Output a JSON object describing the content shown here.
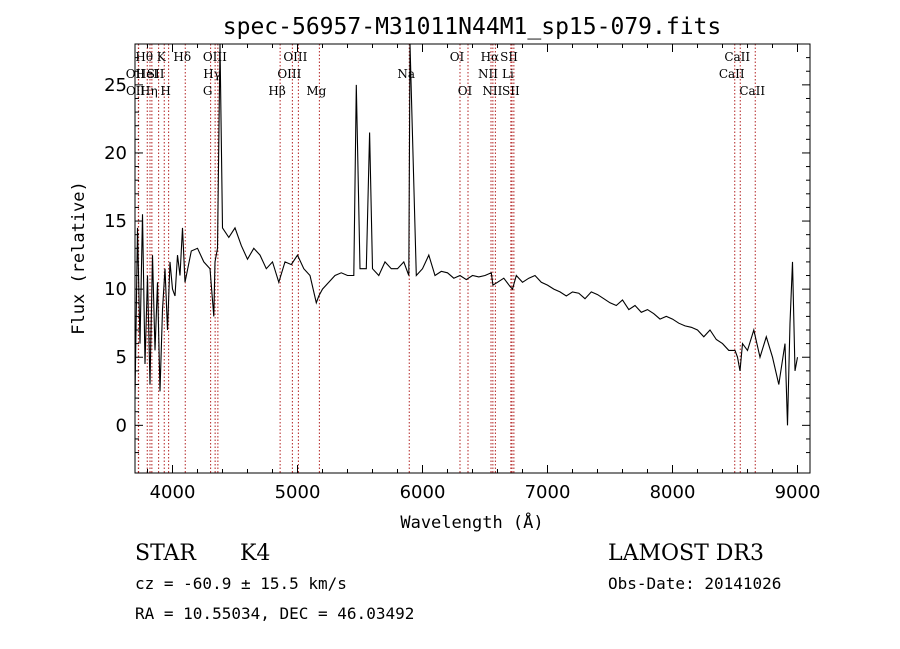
{
  "chart_data": {
    "type": "line",
    "title": "spec-56957-M31011N44M1_sp15-079.fits",
    "xlabel": "Wavelength (Å)",
    "ylabel": "Flux (relative)",
    "xlim": [
      3700,
      9100
    ],
    "ylim": [
      -3.5,
      28
    ],
    "xticks": [
      4000,
      5000,
      6000,
      7000,
      8000,
      9000
    ],
    "yticks": [
      0,
      5,
      10,
      15,
      20,
      25
    ],
    "line_color": "#000000",
    "marker_color": "#b22222",
    "series": [
      {
        "x": [
          3700,
          3720,
          3740,
          3760,
          3780,
          3800,
          3820,
          3840,
          3860,
          3880,
          3900,
          3920,
          3940,
          3960,
          3980,
          4000,
          4020,
          4040,
          4060,
          4080,
          4100,
          4150,
          4200,
          4250,
          4300,
          4330,
          4340,
          4360,
          4380,
          4400,
          4450,
          4500,
          4550,
          4600,
          4650,
          4700,
          4750,
          4800,
          4850,
          4900,
          4950,
          5000,
          5050,
          5100,
          5150,
          5170,
          5200,
          5250,
          5300,
          5350,
          5400,
          5450,
          5470,
          5500,
          5550,
          5577,
          5600,
          5650,
          5700,
          5750,
          5800,
          5850,
          5890,
          5900,
          5950,
          6000,
          6050,
          6100,
          6150,
          6200,
          6250,
          6300,
          6350,
          6400,
          6450,
          6500,
          6550,
          6563,
          6600,
          6650,
          6700,
          6720,
          6750,
          6800,
          6850,
          6900,
          6950,
          7000,
          7050,
          7100,
          7150,
          7200,
          7250,
          7300,
          7350,
          7400,
          7450,
          7500,
          7550,
          7600,
          7650,
          7700,
          7750,
          7800,
          7850,
          7900,
          7950,
          8000,
          8050,
          8100,
          8150,
          8200,
          8250,
          8300,
          8350,
          8400,
          8450,
          8500,
          8520,
          8540,
          8560,
          8600,
          8650,
          8700,
          8750,
          8800,
          8850,
          8900,
          8920,
          8940,
          8960,
          8980,
          9000
        ],
        "y": [
          2.0,
          14.5,
          6.0,
          15.5,
          4.5,
          11.0,
          3.0,
          12.5,
          5.5,
          10.5,
          2.5,
          8.5,
          11.5,
          7.0,
          12.0,
          10.0,
          9.5,
          12.5,
          11.0,
          14.5,
          10.5,
          12.8,
          13.0,
          12.0,
          11.5,
          8.0,
          12.0,
          13.0,
          28.0,
          14.5,
          13.8,
          14.5,
          13.2,
          12.2,
          13.0,
          12.5,
          11.5,
          12.0,
          10.5,
          12.0,
          11.8,
          12.5,
          11.5,
          11.0,
          9.0,
          9.5,
          10.0,
          10.5,
          11.0,
          11.2,
          11.0,
          11.0,
          25.0,
          11.5,
          11.5,
          21.5,
          11.5,
          11.0,
          12.0,
          11.5,
          11.5,
          12.0,
          11.0,
          28.0,
          11.0,
          11.5,
          12.5,
          11.0,
          11.3,
          11.2,
          10.8,
          11.0,
          10.7,
          11.0,
          10.9,
          11.0,
          11.2,
          10.3,
          10.5,
          10.8,
          10.2,
          10.0,
          11.0,
          10.5,
          10.8,
          11.0,
          10.5,
          10.3,
          10.0,
          9.8,
          9.5,
          9.8,
          9.7,
          9.3,
          9.8,
          9.6,
          9.3,
          9.0,
          8.8,
          9.2,
          8.5,
          8.8,
          8.3,
          8.5,
          8.2,
          7.8,
          8.0,
          7.8,
          7.5,
          7.3,
          7.2,
          7.0,
          6.5,
          7.0,
          6.3,
          6.0,
          5.5,
          5.5,
          5.0,
          4.0,
          6.0,
          5.5,
          7.0,
          5.0,
          6.5,
          5.0,
          3.0,
          6.0,
          0.0,
          7.5,
          12.0,
          4.0,
          5.0
        ]
      }
    ],
    "line_markers": [
      {
        "lines": [
          {
            "label": "OII",
            "x": 3727,
            "row": 2
          },
          {
            "label": "OII",
            "x": 3729,
            "row": 3
          }
        ]
      },
      {
        "lines": [
          {
            "label": "Hθ",
            "x": 3798,
            "row": 1
          }
        ]
      },
      {
        "lines": [
          {
            "label": "HeI",
            "x": 3820,
            "row": 2
          }
        ]
      },
      {
        "lines": [
          {
            "label": "Hη",
            "x": 3835,
            "row": 3
          }
        ]
      },
      {
        "lines": [
          {
            "label": "SII",
            "x": 3889,
            "row": 2
          }
        ]
      },
      {
        "lines": [
          {
            "label": "K",
            "x": 3934,
            "row": 1
          }
        ]
      },
      {
        "lines": [
          {
            "label": "H",
            "x": 3969,
            "row": 3
          }
        ]
      },
      {
        "lines": [
          {
            "label": "Hδ",
            "x": 4102,
            "row": 1
          }
        ]
      },
      {
        "lines": [
          {
            "label": "G",
            "x": 4305,
            "row": 3
          }
        ]
      },
      {
        "lines": [
          {
            "label": "Hγ",
            "x": 4341,
            "row": 2
          }
        ]
      },
      {
        "lines": [
          {
            "label": "OIII",
            "x": 4363,
            "row": 1
          }
        ]
      },
      {
        "lines": [
          {
            "label": "Hβ",
            "x": 4861,
            "row": 3
          }
        ]
      },
      {
        "lines": [
          {
            "label": "OIII",
            "x": 4959,
            "row": 2
          }
        ]
      },
      {
        "lines": [
          {
            "label": "OIII",
            "x": 5007,
            "row": 1
          }
        ]
      },
      {
        "lines": [
          {
            "label": "Mg",
            "x": 5175,
            "row": 3
          }
        ]
      },
      {
        "lines": [
          {
            "label": "Na",
            "x": 5894,
            "row": 2
          }
        ]
      },
      {
        "lines": [
          {
            "label": "OI",
            "x": 6300,
            "row": 1
          }
        ]
      },
      {
        "lines": [
          {
            "label": "OI",
            "x": 6364,
            "row": 3
          }
        ]
      },
      {
        "lines": [
          {
            "label": "NII",
            "x": 6548,
            "row": 2
          }
        ]
      },
      {
        "lines": [
          {
            "label": "Hα",
            "x": 6563,
            "row": 1
          }
        ]
      },
      {
        "lines": [
          {
            "label": "NII",
            "x": 6583,
            "row": 3
          }
        ]
      },
      {
        "lines": [
          {
            "label": "Li",
            "x": 6707,
            "row": 2
          }
        ]
      },
      {
        "lines": [
          {
            "label": "SII",
            "x": 6716,
            "row": 1
          }
        ]
      },
      {
        "lines": [
          {
            "label": "SII",
            "x": 6731,
            "row": 3
          }
        ]
      },
      {
        "lines": [
          {
            "label": "CaII",
            "x": 8498,
            "row": 2
          }
        ]
      },
      {
        "lines": [
          {
            "label": "CaII",
            "x": 8542,
            "row": 1
          }
        ]
      },
      {
        "lines": [
          {
            "label": "CaII",
            "x": 8662,
            "row": 3
          }
        ]
      }
    ]
  },
  "info": {
    "object_class": "STAR",
    "subclass": "K4",
    "survey": "LAMOST DR3",
    "cz": "cz = -60.9 ± 15.5 km/s",
    "obs_date": "Obs-Date: 20141026",
    "coords": "RA =  10.55034, DEC =  46.03492"
  }
}
